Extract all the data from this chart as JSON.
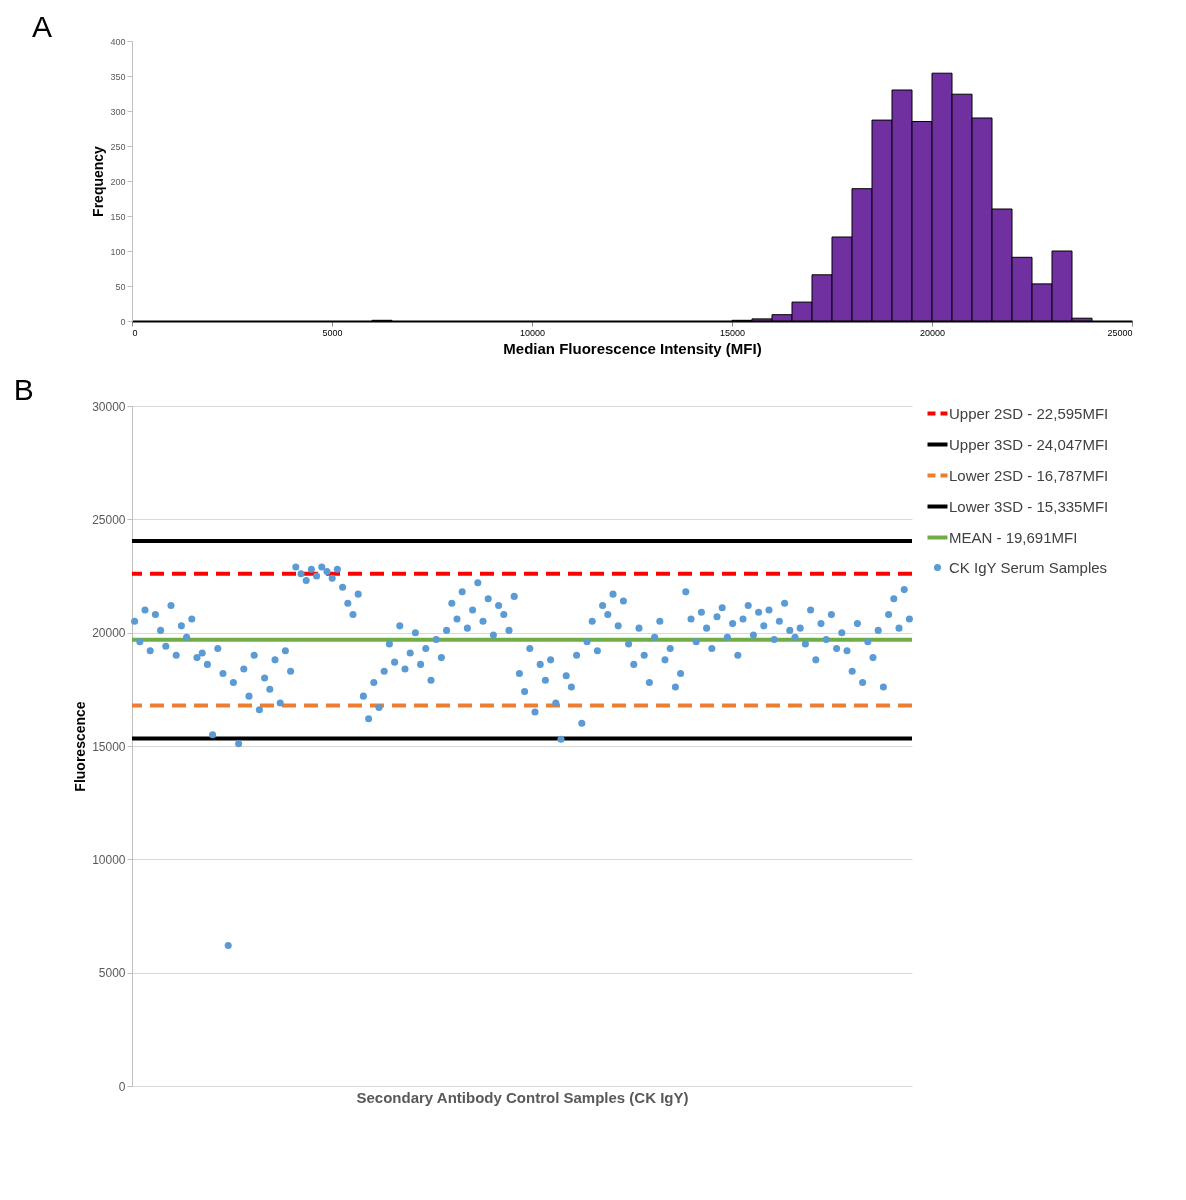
{
  "chart_data": [
    {
      "type": "histogram",
      "title": "A",
      "xlabel": "Median Fluorescence Intensity (MFI)",
      "ylabel": "Frequency",
      "color": "#7030a0",
      "bins": [
        0,
        500,
        1000,
        1500,
        2000,
        2500,
        3000,
        3500,
        4000,
        4500,
        5000,
        5500,
        6000,
        6500,
        7000,
        7500,
        8000,
        8500,
        9000,
        9500,
        10000,
        10500,
        11000,
        11500,
        12000,
        12500,
        13000,
        13500,
        14000,
        14500,
        15000,
        15500,
        16000,
        16500,
        17000,
        17500,
        18000,
        18500,
        19000,
        19500,
        20000,
        20500,
        21000,
        21500,
        22000,
        22500,
        23000,
        23500,
        24000,
        24500,
        25000
      ],
      "values": [
        0,
        0,
        0,
        0,
        0,
        0,
        0,
        0,
        0,
        0,
        0,
        0,
        1,
        0,
        0,
        0,
        0,
        0,
        0,
        0,
        0,
        0,
        0,
        0,
        0,
        0,
        0,
        0,
        0,
        0,
        1,
        3,
        9,
        27,
        66,
        120,
        189,
        287,
        330,
        285,
        354,
        324,
        290,
        160,
        91,
        53,
        100,
        4,
        0,
        0
      ],
      "xlim": [
        0,
        25000
      ],
      "xticks": [
        0,
        5000,
        10000,
        15000,
        20000,
        25000
      ],
      "ylim": [
        0,
        400
      ],
      "yticks": [
        0,
        50,
        100,
        150,
        200,
        250,
        300,
        350,
        400
      ],
      "grid": false
    },
    {
      "type": "scatter",
      "title": "B",
      "xlabel": "Secondary Antibody Control Samples (CK IgY)",
      "ylabel": "Fluorescence",
      "marker": "circle",
      "grid": "y",
      "legend": "right",
      "tick_labels": "y",
      "categories": [
        null,
        null,
        null,
        null,
        null,
        null,
        null,
        null,
        null,
        null,
        null,
        null,
        null,
        null,
        null,
        null,
        null,
        null,
        null,
        null,
        null,
        null,
        null,
        null,
        null,
        null,
        null,
        null,
        null,
        null,
        null,
        null,
        null,
        null,
        null,
        null,
        null,
        null,
        null,
        null,
        null,
        null,
        null,
        null,
        null,
        null,
        null,
        null,
        null,
        null,
        null,
        null,
        null,
        null,
        null,
        null,
        null,
        null,
        null,
        null,
        null,
        null,
        null,
        null,
        null,
        null,
        null,
        null,
        null,
        null,
        null,
        null,
        null,
        null,
        null,
        null,
        null,
        null,
        null,
        null,
        null,
        null,
        null,
        null,
        null,
        null,
        null,
        null,
        null,
        null,
        null,
        null,
        null,
        null,
        null,
        null,
        null,
        null,
        null,
        null,
        null,
        null,
        null,
        null,
        null,
        null,
        null,
        null,
        null,
        null,
        null,
        null,
        null,
        null,
        null,
        null,
        null,
        null,
        null,
        null,
        null,
        null,
        null,
        null,
        null,
        null,
        null,
        null,
        null,
        null,
        null,
        null,
        null,
        null,
        null,
        null,
        null,
        null,
        null,
        null,
        null,
        null,
        null,
        null,
        null,
        null,
        null,
        null,
        null,
        null
      ],
      "series": [
        {
          "name": "CK IgY Serum Samples",
          "color": "#5b9bd5",
          "values": [
            20500,
            19600,
            21000,
            19200,
            20800,
            20100,
            19400,
            21200,
            19000,
            20300,
            19800,
            20600,
            18900,
            19100,
            18600,
            15500,
            19300,
            18200,
            6200,
            17800,
            15100,
            18400,
            17200,
            19000,
            16600,
            18000,
            17500,
            18800,
            16900,
            19200,
            18300,
            22900,
            22600,
            22300,
            22800,
            22500,
            22900,
            22700,
            22400,
            22800,
            22000,
            21300,
            20800,
            21700,
            17200,
            16200,
            17800,
            16700,
            18300,
            19500,
            18700,
            20300,
            18400,
            19100,
            20000,
            18600,
            19300,
            17900,
            19700,
            18900,
            20100,
            21300,
            20600,
            21800,
            20200,
            21000,
            22200,
            20500,
            21500,
            19900,
            21200,
            20800,
            20100,
            21600,
            18200,
            17400,
            19300,
            16500,
            18600,
            17900,
            18800,
            16900,
            15300,
            18100,
            17600,
            19000,
            16000,
            19600,
            20500,
            19200,
            21200,
            20800,
            21700,
            20300,
            21400,
            19500,
            18600,
            20200,
            19000,
            17800,
            19800,
            20500,
            18800,
            19300,
            17600,
            18200,
            21800,
            20600,
            19600,
            20900,
            20200,
            19300,
            20700,
            21100,
            19800,
            20400,
            19000,
            20600,
            21200,
            19900,
            20900,
            20300,
            21000,
            19700,
            20500,
            21300,
            20100,
            19800,
            20200,
            19500,
            21000,
            18800,
            20400,
            19700,
            20800,
            19300,
            20000,
            19200,
            18300,
            20400,
            17800,
            19600,
            18900,
            20100,
            17600,
            20800,
            21500,
            20200,
            21900,
            20600
          ]
        }
      ],
      "ylim": [
        0,
        30000
      ],
      "yticks": [
        0,
        5000,
        10000,
        15000,
        20000,
        25000,
        30000
      ],
      "ref_lines": [
        {
          "axis": "y",
          "value": 22595,
          "label": "Upper 2SD - 22,595MFI",
          "color": "#ff0000",
          "line_style": "dashed"
        },
        {
          "axis": "y",
          "value": 24047,
          "label": "Upper 3SD - 24,047MFI",
          "color": "#000000",
          "line_style": "solid"
        },
        {
          "axis": "y",
          "value": 16787,
          "label": "Lower 2SD - 16,787MFI",
          "color": "#ed7d31",
          "line_style": "dashed"
        },
        {
          "axis": "y",
          "value": 15335,
          "label": "Lower 3SD - 15,335MFI",
          "color": "#000000",
          "line_style": "solid"
        },
        {
          "axis": "y",
          "value": 19691,
          "label": "MEAN - 19,691MFI",
          "color": "#70ad47",
          "line_style": "solid"
        }
      ]
    }
  ]
}
